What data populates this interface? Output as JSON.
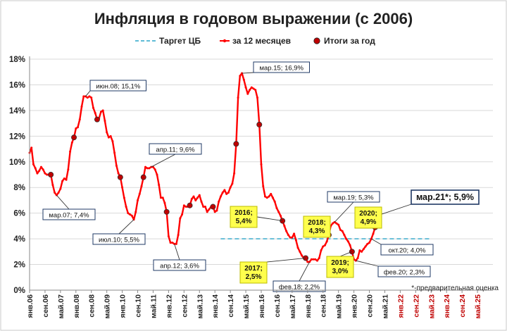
{
  "chart_data": {
    "type": "line",
    "title": "Инфляция в годовом выражении (с 2006)",
    "note": "*-предварительная оценка",
    "y_ticks": [
      "0%",
      "2%",
      "4%",
      "6%",
      "8%",
      "10%",
      "12%",
      "14%",
      "16%",
      "18%"
    ],
    "ylim": [
      0,
      18
    ],
    "x_ticks": [
      "янв.06",
      "сен.06",
      "май.07",
      "янв.08",
      "сен.08",
      "май.09",
      "янв.10",
      "сен.10",
      "май.11",
      "янв.12",
      "сен.12",
      "май.13",
      "янв.14",
      "сен.14",
      "май.15",
      "янв.16",
      "сен.16",
      "май.17",
      "янв.18",
      "сен.18",
      "май.19",
      "янв.20",
      "сен.20",
      "май.21",
      "янв.22",
      "сен.22",
      "май.23",
      "янв.24",
      "сен.24",
      "май.25"
    ],
    "tick_colors": {
      "normal": "#222222",
      "future": "#c00000"
    },
    "future_from_index": 24,
    "legend": [
      {
        "label": "Таргет ЦБ",
        "kind": "dashed",
        "color": "#2aa5c8"
      },
      {
        "label": "за 12 месяцев",
        "kind": "line",
        "color": "#ff0000"
      },
      {
        "label": "Итоги за год",
        "kind": "dot",
        "color": "#c00000"
      }
    ],
    "target": {
      "value": 4.0,
      "from_month": 99,
      "to_month": 207
    },
    "series_anchors": [
      [
        0,
        10.7
      ],
      [
        1,
        11.1
      ],
      [
        2,
        9.8
      ],
      [
        3,
        9.5
      ],
      [
        4,
        9.1
      ],
      [
        5,
        9.3
      ],
      [
        6,
        9.6
      ],
      [
        7,
        9.4
      ],
      [
        8,
        9.1
      ],
      [
        9,
        9.0
      ],
      [
        10,
        9.0
      ],
      [
        11,
        9.0
      ],
      [
        12,
        8.2
      ],
      [
        13,
        7.6
      ],
      [
        14,
        7.4
      ],
      [
        15,
        7.6
      ],
      [
        16,
        7.9
      ],
      [
        17,
        8.5
      ],
      [
        18,
        8.7
      ],
      [
        19,
        8.6
      ],
      [
        20,
        9.4
      ],
      [
        21,
        10.8
      ],
      [
        22,
        11.5
      ],
      [
        23,
        11.9
      ],
      [
        24,
        12.6
      ],
      [
        25,
        12.7
      ],
      [
        26,
        13.3
      ],
      [
        27,
        14.3
      ],
      [
        28,
        15.1
      ],
      [
        29,
        15.1
      ],
      [
        30,
        15.0
      ],
      [
        31,
        15.1
      ],
      [
        32,
        15.0
      ],
      [
        33,
        14.2
      ],
      [
        34,
        13.8
      ],
      [
        35,
        13.3
      ],
      [
        36,
        13.4
      ],
      [
        37,
        13.9
      ],
      [
        38,
        14.0
      ],
      [
        39,
        13.2
      ],
      [
        40,
        12.3
      ],
      [
        41,
        11.9
      ],
      [
        42,
        12.0
      ],
      [
        43,
        11.6
      ],
      [
        44,
        10.7
      ],
      [
        45,
        9.7
      ],
      [
        46,
        9.1
      ],
      [
        47,
        8.8
      ],
      [
        48,
        8.0
      ],
      [
        49,
        7.2
      ],
      [
        50,
        6.5
      ],
      [
        51,
        6.0
      ],
      [
        52,
        5.9
      ],
      [
        53,
        5.8
      ],
      [
        54,
        5.5
      ],
      [
        55,
        6.1
      ],
      [
        56,
        7.0
      ],
      [
        57,
        7.5
      ],
      [
        58,
        8.1
      ],
      [
        59,
        8.8
      ],
      [
        60,
        9.6
      ],
      [
        61,
        9.5
      ],
      [
        62,
        9.5
      ],
      [
        63,
        9.6
      ],
      [
        64,
        9.6
      ],
      [
        65,
        9.4
      ],
      [
        66,
        9.0
      ],
      [
        67,
        8.2
      ],
      [
        68,
        7.2
      ],
      [
        69,
        7.2
      ],
      [
        70,
        6.8
      ],
      [
        71,
        6.1
      ],
      [
        72,
        4.2
      ],
      [
        73,
        3.7
      ],
      [
        74,
        3.7
      ],
      [
        75,
        3.6
      ],
      [
        76,
        3.6
      ],
      [
        77,
        4.3
      ],
      [
        78,
        5.6
      ],
      [
        79,
        5.9
      ],
      [
        80,
        6.6
      ],
      [
        81,
        6.5
      ],
      [
        82,
        6.5
      ],
      [
        83,
        6.6
      ],
      [
        84,
        7.1
      ],
      [
        85,
        7.3
      ],
      [
        86,
        7.0
      ],
      [
        87,
        7.2
      ],
      [
        88,
        7.4
      ],
      [
        89,
        6.9
      ],
      [
        90,
        6.5
      ],
      [
        91,
        6.5
      ],
      [
        92,
        6.1
      ],
      [
        93,
        6.3
      ],
      [
        94,
        6.5
      ],
      [
        95,
        6.5
      ],
      [
        96,
        6.1
      ],
      [
        97,
        6.2
      ],
      [
        98,
        6.9
      ],
      [
        99,
        7.3
      ],
      [
        100,
        7.6
      ],
      [
        101,
        7.8
      ],
      [
        102,
        7.5
      ],
      [
        103,
        7.6
      ],
      [
        104,
        8.0
      ],
      [
        105,
        8.3
      ],
      [
        106,
        9.1
      ],
      [
        107,
        11.4
      ],
      [
        108,
        15.0
      ],
      [
        109,
        16.7
      ],
      [
        110,
        16.9
      ],
      [
        111,
        16.4
      ],
      [
        112,
        15.8
      ],
      [
        113,
        15.3
      ],
      [
        114,
        15.6
      ],
      [
        115,
        15.8
      ],
      [
        116,
        15.7
      ],
      [
        117,
        15.6
      ],
      [
        118,
        15.0
      ],
      [
        119,
        12.9
      ],
      [
        120,
        9.8
      ],
      [
        121,
        8.1
      ],
      [
        122,
        7.3
      ],
      [
        123,
        7.2
      ],
      [
        124,
        7.3
      ],
      [
        125,
        7.5
      ],
      [
        126,
        7.2
      ],
      [
        127,
        6.9
      ],
      [
        128,
        6.4
      ],
      [
        129,
        6.1
      ],
      [
        130,
        5.8
      ],
      [
        131,
        5.4
      ],
      [
        132,
        5.0
      ],
      [
        133,
        4.6
      ],
      [
        134,
        4.3
      ],
      [
        135,
        4.1
      ],
      [
        136,
        4.1
      ],
      [
        137,
        4.4
      ],
      [
        138,
        3.9
      ],
      [
        139,
        3.3
      ],
      [
        140,
        3.0
      ],
      [
        141,
        2.7
      ],
      [
        142,
        2.5
      ],
      [
        143,
        2.5
      ],
      [
        144,
        2.2
      ],
      [
        145,
        2.2
      ],
      [
        146,
        2.4
      ],
      [
        147,
        2.4
      ],
      [
        148,
        2.4
      ],
      [
        149,
        2.3
      ],
      [
        150,
        2.5
      ],
      [
        151,
        3.1
      ],
      [
        152,
        3.4
      ],
      [
        153,
        3.5
      ],
      [
        154,
        3.8
      ],
      [
        155,
        4.3
      ],
      [
        156,
        5.0
      ],
      [
        157,
        5.2
      ],
      [
        158,
        5.3
      ],
      [
        159,
        5.2
      ],
      [
        160,
        5.1
      ],
      [
        161,
        4.7
      ],
      [
        162,
        4.6
      ],
      [
        163,
        4.3
      ],
      [
        164,
        4.0
      ],
      [
        165,
        3.8
      ],
      [
        166,
        3.5
      ],
      [
        167,
        3.0
      ],
      [
        168,
        2.4
      ],
      [
        169,
        2.3
      ],
      [
        170,
        2.5
      ],
      [
        171,
        3.1
      ],
      [
        172,
        3.0
      ],
      [
        173,
        3.2
      ],
      [
        174,
        3.4
      ],
      [
        175,
        3.6
      ],
      [
        176,
        3.7
      ],
      [
        177,
        4.0
      ],
      [
        178,
        4.4
      ],
      [
        179,
        4.9
      ],
      [
        180,
        5.2
      ],
      [
        181,
        5.7
      ],
      [
        182,
        5.9
      ]
    ],
    "year_end_points": [
      [
        11,
        9.0
      ],
      [
        23,
        11.9
      ],
      [
        35,
        13.3
      ],
      [
        47,
        8.8
      ],
      [
        59,
        8.8
      ],
      [
        71,
        6.1
      ],
      [
        83,
        6.6
      ],
      [
        95,
        6.5
      ],
      [
        107,
        11.4
      ],
      [
        119,
        12.9
      ],
      [
        131,
        5.4
      ],
      [
        143,
        2.5
      ],
      [
        155,
        4.3
      ],
      [
        167,
        3.0
      ],
      [
        179,
        4.9
      ]
    ],
    "annotations": [
      {
        "text": "июн.08; 15,1%",
        "month": 29,
        "value": 15.1,
        "style": "box"
      },
      {
        "text": "мар.07; 7,4%",
        "month": 14,
        "value": 7.4,
        "style": "box"
      },
      {
        "text": "апр.11; 9,6%",
        "month": 63,
        "value": 9.6,
        "style": "box"
      },
      {
        "text": "июл.10; 5,5%",
        "month": 54,
        "value": 5.5,
        "style": "box"
      },
      {
        "text": "апр.12; 3,6%",
        "month": 75,
        "value": 3.6,
        "style": "box"
      },
      {
        "text": "мар.15; 16,9%",
        "month": 110,
        "value": 16.9,
        "style": "box"
      },
      {
        "text": "фев.18; 2,2%",
        "month": 145,
        "value": 2.2,
        "style": "box"
      },
      {
        "text": "мар.19; 5,3%",
        "month": 158,
        "value": 5.3,
        "style": "box"
      },
      {
        "text": "окт.20; 4,0%",
        "month": 177,
        "value": 4.0,
        "style": "box"
      },
      {
        "text": "фев.20; 2,3%",
        "month": 169,
        "value": 2.3,
        "style": "box"
      },
      {
        "text": "мар.21*; 5,9%",
        "month": 182,
        "value": 5.9,
        "style": "big"
      },
      {
        "text": "2016;|5,4%",
        "month": 131,
        "value": 5.4,
        "style": "yellow"
      },
      {
        "text": "2017;|2,5%",
        "month": 143,
        "value": 2.5,
        "style": "yellow"
      },
      {
        "text": "2018;|4,3%",
        "month": 155,
        "value": 4.3,
        "style": "yellow"
      },
      {
        "text": "2019;|3,0%",
        "month": 167,
        "value": 3.0,
        "style": "yellow"
      },
      {
        "text": "2020;|4,9%",
        "month": 179,
        "value": 4.9,
        "style": "yellow"
      }
    ]
  }
}
